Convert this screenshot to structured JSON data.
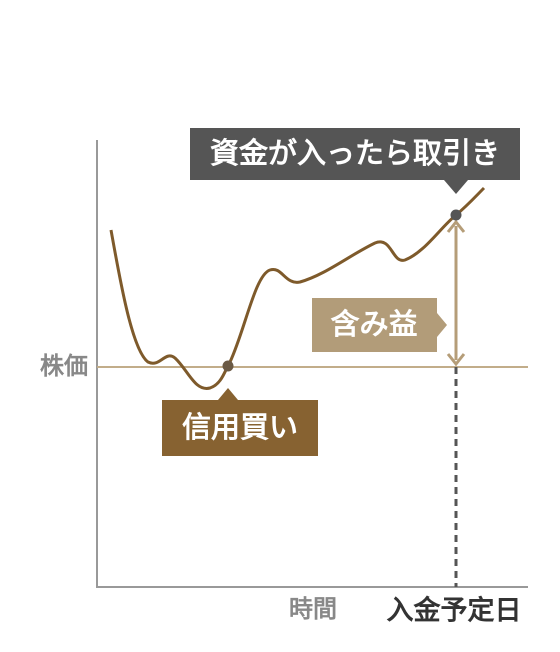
{
  "callouts": {
    "trade": "資金が入ったら取引き",
    "gain": "含み益",
    "buy": "信用買い"
  },
  "axes": {
    "y_label": "株価",
    "x_label": "時間",
    "x_marker": "入金予定日"
  }
}
